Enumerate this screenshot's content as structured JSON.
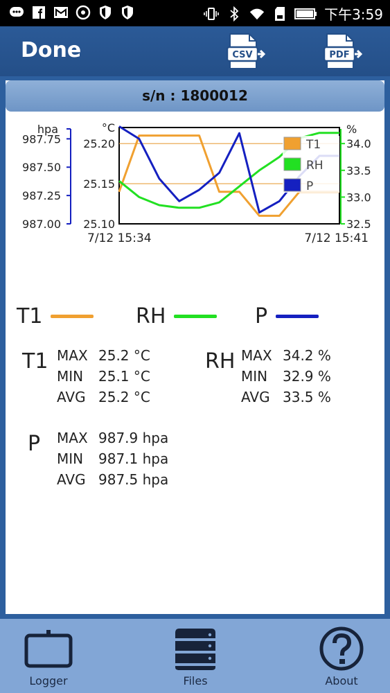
{
  "status_bar": {
    "time": "下午3:59",
    "icons": [
      "chat-icon",
      "facebook-icon",
      "mail-icon",
      "sync-icon",
      "shield-icon",
      "shield-icon",
      "vibrate-icon",
      "bluetooth-icon",
      "wifi-icon",
      "sd-card-icon",
      "battery-icon"
    ]
  },
  "app_bar": {
    "title": "Done",
    "csv_label": "CSV",
    "pdf_label": "PDF"
  },
  "serial": "s/n : 1800012",
  "chart_data": {
    "type": "line",
    "x_start_label": "7/12 15:34",
    "x_end_label": "7/12 15:41",
    "axes": {
      "pressure": {
        "unit": "hpa",
        "ticks": [
          "987.75",
          "987.50",
          "987.25",
          "987.00"
        ],
        "range": [
          987.0,
          987.85
        ]
      },
      "temperature": {
        "unit": "°C",
        "ticks": [
          "25.20",
          "25.15",
          "25.10"
        ],
        "range": [
          25.1,
          25.22
        ]
      },
      "humidity": {
        "unit": "%",
        "ticks": [
          "34.0",
          "33.5",
          "33.0",
          "32.5"
        ],
        "range": [
          32.5,
          34.3
        ]
      }
    },
    "series": [
      {
        "name": "T1",
        "color": "#f0a030",
        "axis": "temperature",
        "values": [
          25.14,
          25.21,
          25.21,
          25.21,
          25.21,
          25.14,
          25.14,
          25.11,
          25.11,
          25.14,
          25.14,
          25.14
        ]
      },
      {
        "name": "RH",
        "color": "#22e022",
        "axis": "humidity",
        "values": [
          33.3,
          33.0,
          32.85,
          32.8,
          32.8,
          32.9,
          33.2,
          33.5,
          33.75,
          34.1,
          34.2,
          34.2
        ]
      },
      {
        "name": "P",
        "color": "#1520c0",
        "axis": "pressure",
        "values": [
          987.86,
          987.75,
          987.4,
          987.2,
          987.3,
          987.45,
          987.8,
          987.1,
          987.2,
          987.42,
          987.6,
          987.6
        ]
      }
    ],
    "legend_placement": "top-right",
    "reference_lines": [
      25.2,
      25.15
    ]
  },
  "legend": [
    {
      "name": "T1",
      "color": "#f0a030"
    },
    {
      "name": "RH",
      "color": "#22e022"
    },
    {
      "name": "P",
      "color": "#1520c0"
    }
  ],
  "stats": {
    "t1": {
      "name": "T1",
      "max_key": "MAX",
      "max": "25.2 °C",
      "min_key": "MIN",
      "min": "25.1 °C",
      "avg_key": "AVG",
      "avg": "25.2 °C"
    },
    "rh": {
      "name": "RH",
      "max_key": "MAX",
      "max": "34.2 %",
      "min_key": "MIN",
      "min": "32.9 %",
      "avg_key": "AVG",
      "avg": "33.5 %"
    },
    "p": {
      "name": "P",
      "max_key": "MAX",
      "max": "987.9 hpa",
      "min_key": "MIN",
      "min": "987.1 hpa",
      "avg_key": "AVG",
      "avg": "987.5 hpa"
    }
  },
  "bottom_nav": {
    "logger": "Logger",
    "files": "Files",
    "about": "About"
  }
}
